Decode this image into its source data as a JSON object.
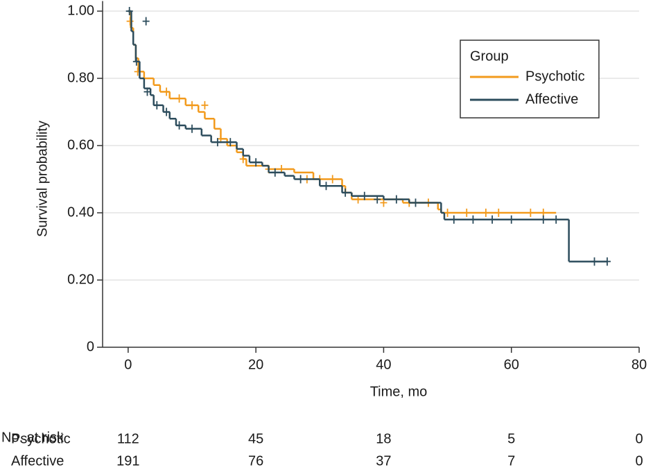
{
  "chart_data": {
    "type": "step",
    "xlabel": "Time, mo",
    "ylabel": "Survival probability",
    "xlim": [
      -4,
      80
    ],
    "ylim": [
      0,
      1.03
    ],
    "xticks": [
      0,
      20,
      40,
      60,
      80
    ],
    "yticks": [
      0,
      {
        "value": 0.2,
        "label": "0.20"
      },
      {
        "value": 0.4,
        "label": "0.40"
      },
      {
        "value": 0.6,
        "label": "0.60"
      },
      {
        "value": 0.8,
        "label": "0.80"
      },
      {
        "value": 1.0,
        "label": "1.00"
      }
    ],
    "grid": true,
    "legend": {
      "title": "Group",
      "position": "upper right"
    },
    "series": [
      {
        "name": "Psychotic",
        "color": "#f29a1c",
        "x": [
          0,
          0.4,
          0.8,
          1.2,
          1.6,
          2.5,
          4,
          5,
          6.5,
          9,
          11,
          12,
          13.5,
          14.5,
          15.5,
          17,
          18,
          18.5,
          22,
          26,
          29,
          33.5,
          34,
          35,
          43,
          48.5,
          49,
          67
        ],
        "values": [
          1.0,
          0.95,
          0.9,
          0.86,
          0.82,
          0.8,
          0.78,
          0.76,
          0.74,
          0.72,
          0.7,
          0.68,
          0.65,
          0.62,
          0.6,
          0.58,
          0.56,
          0.54,
          0.53,
          0.52,
          0.5,
          0.48,
          0.46,
          0.44,
          0.43,
          0.41,
          0.4,
          0.4
        ],
        "censored_x": [
          0.3,
          1.5,
          6,
          8,
          10,
          12,
          14.5,
          18,
          22,
          24,
          28,
          30,
          32,
          36,
          40,
          44,
          47,
          50,
          53,
          56,
          58,
          63,
          65
        ],
        "censored_y": [
          0.97,
          0.82,
          0.76,
          0.74,
          0.72,
          0.72,
          0.62,
          0.56,
          0.53,
          0.53,
          0.5,
          0.5,
          0.5,
          0.44,
          0.43,
          0.43,
          0.43,
          0.4,
          0.4,
          0.4,
          0.4,
          0.4,
          0.4
        ]
      },
      {
        "name": "Affective",
        "color": "#2c4c5c",
        "x": [
          0,
          0.5,
          0.8,
          1.2,
          1.8,
          2.5,
          3.5,
          4,
          5.5,
          6.5,
          7.5,
          9,
          11.5,
          13,
          17,
          18,
          19,
          21,
          22,
          24.5,
          26,
          30,
          33.5,
          35,
          40,
          44,
          49,
          49.5,
          69,
          75
        ],
        "values": [
          1.0,
          0.94,
          0.9,
          0.85,
          0.8,
          0.77,
          0.75,
          0.72,
          0.7,
          0.68,
          0.66,
          0.65,
          0.63,
          0.61,
          0.59,
          0.57,
          0.55,
          0.54,
          0.52,
          0.51,
          0.5,
          0.48,
          0.46,
          0.45,
          0.44,
          0.43,
          0.4,
          0.38,
          0.255,
          0.255
        ],
        "censored_x": [
          0.2,
          2.8,
          1.3,
          3,
          4.5,
          6,
          8,
          10,
          14,
          16,
          20,
          23,
          27,
          31,
          34,
          37,
          39,
          42,
          45,
          51,
          54,
          57,
          60,
          65,
          67,
          73,
          75
        ],
        "censored_y": [
          1.0,
          0.97,
          0.85,
          0.76,
          0.72,
          0.7,
          0.66,
          0.65,
          0.61,
          0.61,
          0.55,
          0.52,
          0.5,
          0.48,
          0.46,
          0.45,
          0.44,
          0.44,
          0.43,
          0.38,
          0.38,
          0.38,
          0.38,
          0.38,
          0.38,
          0.255,
          0.255
        ]
      }
    ],
    "risk_table": {
      "title": "No. at risk",
      "rows": [
        {
          "name": "Psychotic",
          "values": [
            112,
            45,
            18,
            5,
            0
          ]
        },
        {
          "name": "Affective",
          "values": [
            191,
            76,
            37,
            7,
            0
          ]
        }
      ]
    }
  }
}
